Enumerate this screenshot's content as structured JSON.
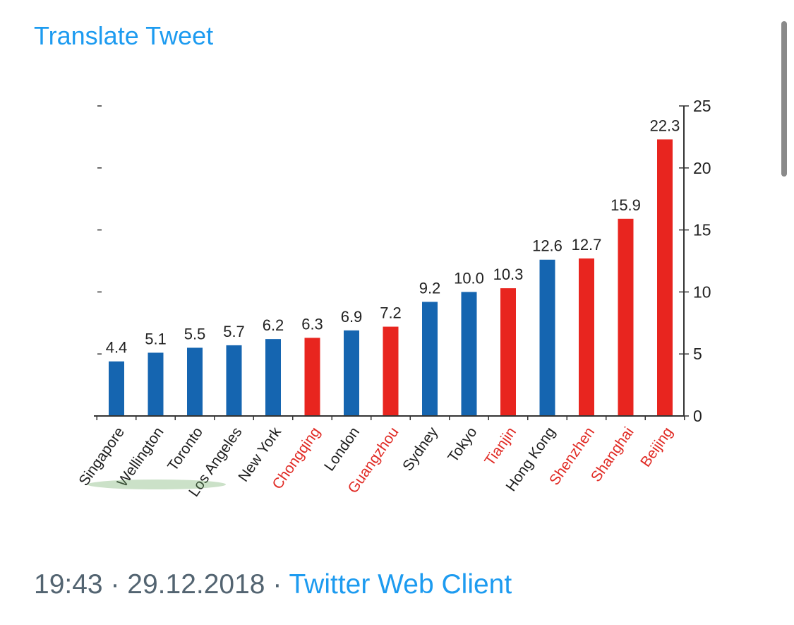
{
  "tweet": {
    "translate_label": "Translate Tweet",
    "time": "19:43",
    "date": "29.12.2018",
    "separator": "·",
    "client": "Twitter Web Client"
  },
  "colors": {
    "link": "#1d9bf0",
    "meta_text": "#536471",
    "blue_bar": "#1565b0",
    "red_bar": "#e8251f",
    "red_label": "#e02a24"
  },
  "chart_data": {
    "type": "bar",
    "categories": [
      "Singapore",
      "Wellington",
      "Toronto",
      "Los Angeles",
      "New York",
      "Chongqing",
      "London",
      "Guangzhou",
      "Sydney",
      "Tokyo",
      "Tianjin",
      "Hong Kong",
      "Shenzhen",
      "Shanghai",
      "Beijing"
    ],
    "values": [
      4.4,
      5.1,
      5.5,
      5.7,
      6.2,
      6.3,
      6.9,
      7.2,
      9.2,
      10.0,
      10.3,
      12.6,
      12.7,
      15.9,
      22.3
    ],
    "value_labels": [
      "4.4",
      "5.1",
      "5.5",
      "5.7",
      "6.2",
      "6.3",
      "6.9",
      "7.2",
      "9.2",
      "10.0",
      "10.3",
      "12.6",
      "12.7",
      "15.9",
      "22.3"
    ],
    "group": [
      "blue",
      "blue",
      "blue",
      "blue",
      "blue",
      "red",
      "blue",
      "red",
      "blue",
      "blue",
      "red",
      "blue",
      "red",
      "red",
      "red"
    ],
    "ylim": [
      0,
      25
    ],
    "yticks": [
      0,
      5,
      10,
      15,
      20,
      25
    ],
    "ytick_labels": [
      "0",
      "5",
      "10",
      "15",
      "20",
      "25"
    ],
    "y_axis_side": "right",
    "grid": false,
    "title": "",
    "xlabel": "",
    "ylabel": ""
  }
}
